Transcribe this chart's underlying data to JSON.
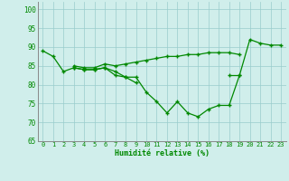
{
  "title": "",
  "xlabel": "Humidité relative (%)",
  "ylabel": "",
  "bg_color": "#d0eeeb",
  "grid_color": "#99cccc",
  "line_color": "#008800",
  "marker": "+",
  "xlim": [
    -0.5,
    23.5
  ],
  "ylim": [
    65,
    102
  ],
  "yticks": [
    65,
    70,
    75,
    80,
    85,
    90,
    95,
    100
  ],
  "xticks": [
    0,
    1,
    2,
    3,
    4,
    5,
    6,
    7,
    8,
    9,
    10,
    11,
    12,
    13,
    14,
    15,
    16,
    17,
    18,
    19,
    20,
    21,
    22,
    23
  ],
  "series": [
    [
      89.0,
      87.5,
      83.5,
      84.5,
      84.0,
      84.0,
      84.5,
      82.5,
      82.0,
      82.0,
      78.0,
      75.5,
      72.5,
      75.5,
      72.5,
      71.5,
      73.5,
      74.5,
      74.5,
      82.5,
      92.0,
      91.0,
      90.5,
      90.5
    ],
    [
      null,
      null,
      null,
      85.0,
      84.5,
      84.5,
      85.5,
      85.0,
      85.5,
      86.0,
      86.5,
      87.0,
      87.5,
      87.5,
      88.0,
      88.0,
      88.5,
      88.5,
      88.5,
      88.0,
      null,
      null,
      null,
      null
    ],
    [
      null,
      null,
      null,
      84.5,
      84.0,
      84.0,
      84.5,
      83.5,
      82.0,
      80.5,
      null,
      null,
      null,
      null,
      null,
      null,
      null,
      null,
      null,
      null,
      null,
      null,
      null,
      null
    ],
    [
      null,
      null,
      null,
      null,
      null,
      null,
      null,
      null,
      null,
      null,
      null,
      null,
      null,
      null,
      null,
      null,
      null,
      null,
      82.5,
      82.5,
      null,
      null,
      null,
      null
    ]
  ]
}
